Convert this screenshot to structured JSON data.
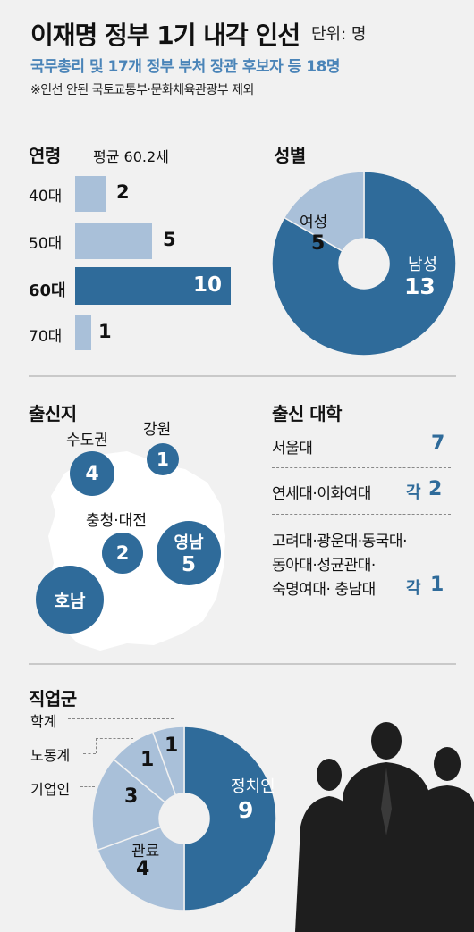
{
  "header": {
    "title": "이재명 정부 1기 내각 인선",
    "unit": "단위: 명",
    "subtitle": "국무총리 및 17개 정부 부처 장관 후보자 등 18명",
    "note": "※인선 안된 국토교통부·문화체육관광부 제외"
  },
  "age": {
    "heading": "연령",
    "average": "평균 60.2세"
  },
  "gender": {
    "heading": "성별"
  },
  "origin": {
    "heading": "출신지"
  },
  "university": {
    "heading": "출신 대학",
    "rows": [
      {
        "label": "서울대",
        "value": "7"
      },
      {
        "label": "연세대·이화여대",
        "each": "각",
        "value": "2"
      },
      {
        "lines": [
          "고려대·광운대·동국대·",
          "동아대·성균관대·",
          "숙명여대· 충남대"
        ],
        "each": "각",
        "value": "1"
      }
    ]
  },
  "job": {
    "heading": "직업군"
  },
  "colors": {
    "dark": "#2f6b9a",
    "light": "#a9c0d9",
    "accent": "#4a84b8",
    "background": "#f1f1f1"
  },
  "chart_data": [
    {
      "type": "bar",
      "name": "age",
      "categories": [
        "40대",
        "50대",
        "60대",
        "70대"
      ],
      "values": [
        2,
        5,
        10,
        1
      ],
      "highlight": "60대"
    },
    {
      "type": "pie",
      "name": "gender",
      "labels": [
        "남성",
        "여성"
      ],
      "values": [
        13,
        5
      ]
    },
    {
      "type": "bubble",
      "name": "origin",
      "labels": [
        "수도권",
        "강원",
        "충청·대전",
        "영남",
        "호남"
      ],
      "values": [
        4,
        1,
        2,
        5,
        6
      ]
    },
    {
      "type": "pie",
      "name": "job",
      "labels": [
        "정치인",
        "관료",
        "기업인",
        "노동계",
        "학계"
      ],
      "values": [
        9,
        4,
        3,
        1,
        1
      ]
    }
  ]
}
